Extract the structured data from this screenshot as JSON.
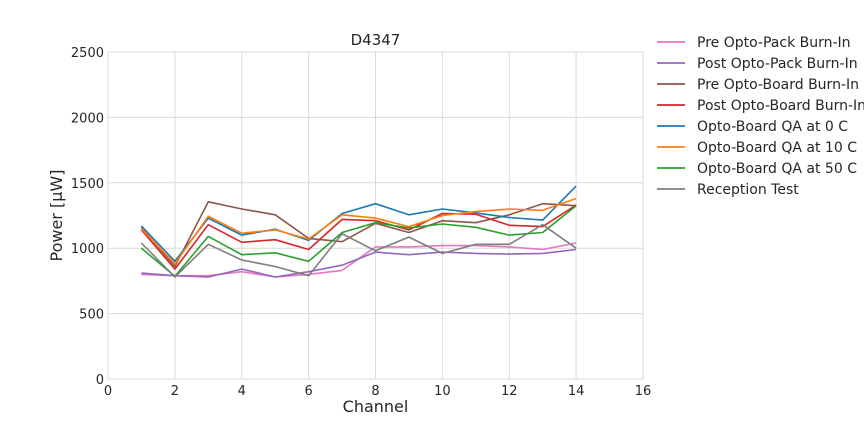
{
  "chart_data": {
    "type": "line",
    "title": "D4347",
    "xlabel": "Channel",
    "ylabel": "Power [μW]",
    "xlim": [
      0,
      16
    ],
    "ylim": [
      0,
      2500
    ],
    "xticks": [
      0,
      2,
      4,
      6,
      8,
      10,
      12,
      14,
      16
    ],
    "yticks": [
      0,
      500,
      1000,
      1500,
      2000,
      2500
    ],
    "grid": true,
    "legend_position": "outside-right",
    "x": [
      1,
      2,
      3,
      4,
      5,
      6,
      7,
      8,
      9,
      10,
      11,
      12,
      13,
      14
    ],
    "series": [
      {
        "name": "Pre Opto-Pack Burn-In",
        "color": "#e377c2",
        "values": [
          800,
          790,
          790,
          820,
          780,
          800,
          830,
          1010,
          1010,
          1020,
          1020,
          1010,
          990,
          1040
        ]
      },
      {
        "name": "Post Opto-Pack Burn-In",
        "color": "#9467bd",
        "values": [
          810,
          790,
          780,
          840,
          780,
          820,
          870,
          970,
          950,
          970,
          960,
          955,
          960,
          990
        ]
      },
      {
        "name": "Pre Opto-Board Burn-In",
        "color": "#8c564b",
        "values": [
          1160,
          860,
          1355,
          1300,
          1255,
          1075,
          1050,
          1190,
          1120,
          1210,
          1195,
          1255,
          1340,
          1325
        ]
      },
      {
        "name": "Post Opto-Board Burn-In",
        "color": "#d62728",
        "values": [
          1140,
          840,
          1180,
          1045,
          1065,
          990,
          1220,
          1210,
          1140,
          1265,
          1260,
          1175,
          1165,
          1330
        ]
      },
      {
        "name": "Opto-Board QA at 0 C",
        "color": "#1f77b4",
        "values": [
          1170,
          900,
          1230,
          1100,
          1145,
          1060,
          1265,
          1340,
          1255,
          1300,
          1270,
          1235,
          1215,
          1475
        ]
      },
      {
        "name": "Opto-Board QA at 10 C",
        "color": "#ff7f0e",
        "values": [
          1150,
          880,
          1245,
          1115,
          1140,
          1070,
          1255,
          1230,
          1165,
          1250,
          1280,
          1300,
          1290,
          1380
        ]
      },
      {
        "name": "Opto-Board QA at 50 C",
        "color": "#2ca02c",
        "values": [
          1000,
          785,
          1090,
          950,
          965,
          900,
          1120,
          1195,
          1155,
          1185,
          1160,
          1100,
          1120,
          1325
        ]
      },
      {
        "name": "Reception Test",
        "color": "#7f7f7f",
        "values": [
          1040,
          780,
          1030,
          910,
          860,
          790,
          1110,
          980,
          1085,
          960,
          1030,
          1030,
          1180,
          1000
        ]
      }
    ]
  }
}
